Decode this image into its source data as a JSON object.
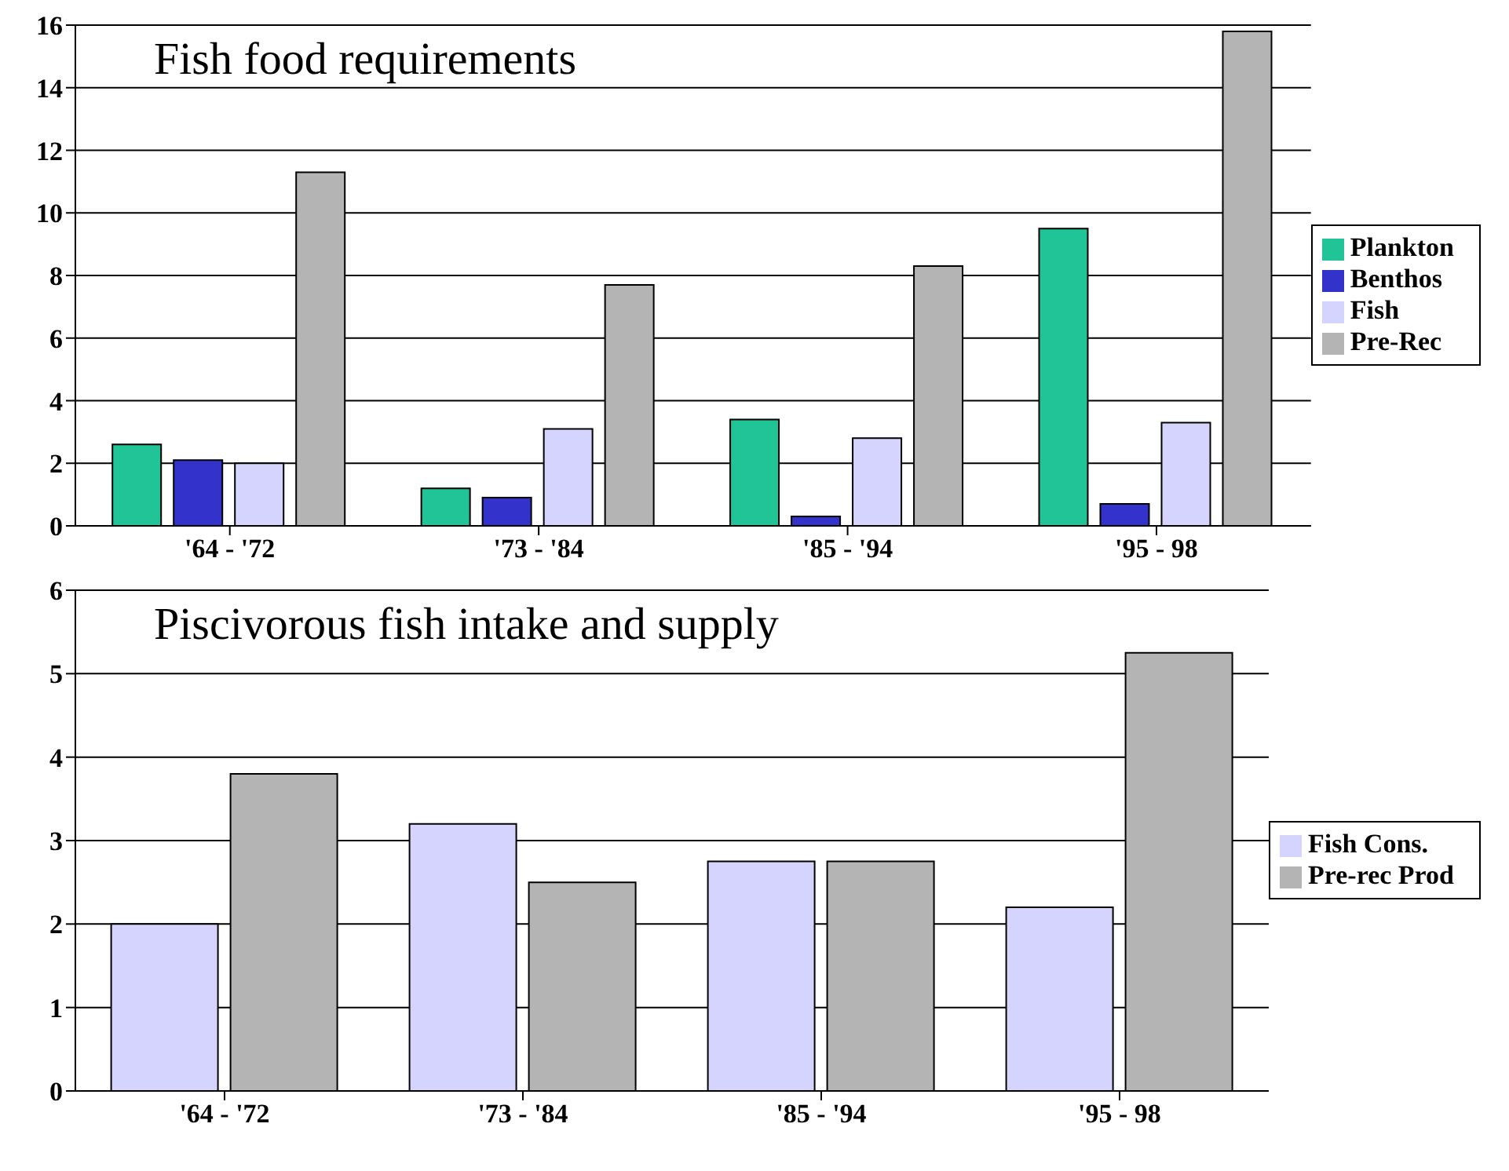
{
  "chart_data": [
    {
      "type": "bar",
      "title": "Fish food requirements",
      "categories": [
        "'64 - '72",
        "'73 - '84",
        "'85 - '94",
        "'95 - 98"
      ],
      "series": [
        {
          "name": "Plankton",
          "color": "#20c496",
          "values": [
            2.6,
            1.2,
            3.4,
            9.5
          ]
        },
        {
          "name": "Benthos",
          "color": "#3333cc",
          "values": [
            2.1,
            0.9,
            0.3,
            0.7
          ]
        },
        {
          "name": "Fish",
          "color": "#d4d4ff",
          "values": [
            2.0,
            3.1,
            2.8,
            3.3
          ]
        },
        {
          "name": "Pre-Rec",
          "color": "#b4b4b4",
          "values": [
            11.3,
            7.7,
            8.3,
            15.8
          ]
        }
      ],
      "ylim": [
        0,
        16
      ],
      "yticks": [
        0,
        2,
        4,
        6,
        8,
        10,
        12,
        14,
        16
      ],
      "grid": "y",
      "legend": "right"
    },
    {
      "type": "bar",
      "title": "Piscivorous fish intake and supply",
      "categories": [
        "'64 - '72",
        "'73 - '84",
        "'85 - '94",
        "'95 - 98"
      ],
      "series": [
        {
          "name": "Fish Cons.",
          "color": "#d4d4ff",
          "values": [
            2.0,
            3.2,
            2.75,
            2.2
          ]
        },
        {
          "name": "Pre-rec Prod",
          "color": "#b4b4b4",
          "values": [
            3.8,
            2.5,
            2.75,
            5.25
          ]
        }
      ],
      "ylim": [
        0,
        6
      ],
      "yticks": [
        0,
        1,
        2,
        3,
        4,
        5,
        6
      ],
      "grid": "y",
      "legend": "right"
    }
  ]
}
